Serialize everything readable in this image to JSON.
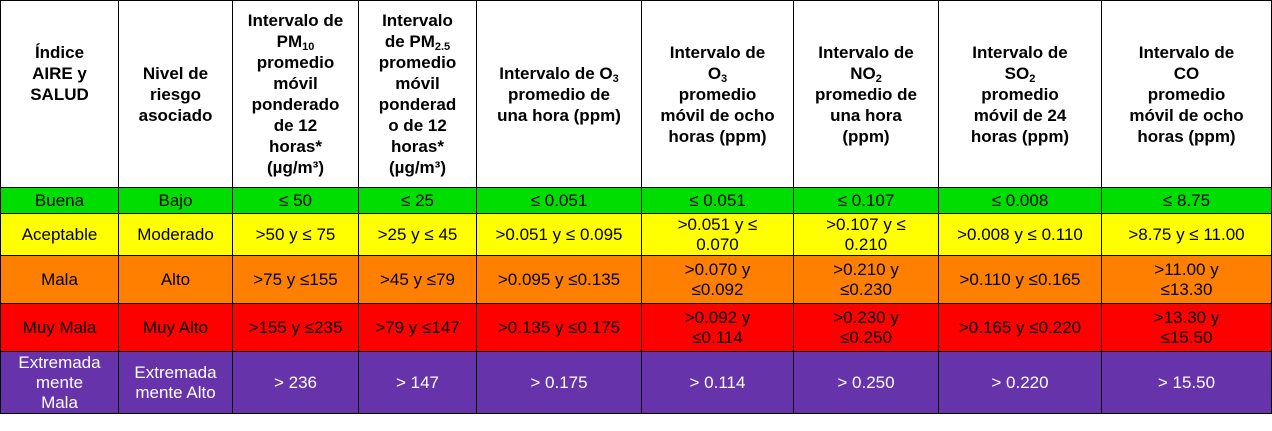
{
  "columns": [
    {
      "lines": [
        "Índice",
        "AIRE y",
        "SALUD"
      ]
    },
    {
      "lines": [
        "Nivel de",
        "riesgo",
        "asociado"
      ]
    },
    {
      "lines": [
        "Intervalo de",
        "PM|10",
        "promedio",
        "móvil",
        "ponderado",
        "de 12",
        "horas*",
        "(µg/m³)"
      ]
    },
    {
      "lines": [
        "Intervalo",
        "de PM|2.5",
        "promedio",
        "móvil",
        "ponderad",
        "o de 12",
        "horas*",
        "(µg/m³)"
      ]
    },
    {
      "lines": [
        "Intervalo de O|3",
        "promedio de",
        "una hora (ppm)"
      ]
    },
    {
      "lines": [
        "Intervalo de",
        "O|3",
        "promedio",
        "móvil de ocho",
        "horas (ppm)"
      ]
    },
    {
      "lines": [
        "Intervalo de",
        "NO|2",
        "promedio de",
        "una hora",
        "(ppm)"
      ]
    },
    {
      "lines": [
        "Intervalo de",
        "SO|2",
        "promedio",
        "móvil de 24",
        "horas (ppm)"
      ]
    },
    {
      "lines": [
        "Intervalo de",
        "CO",
        "promedio",
        "móvil de ocho",
        "horas (ppm)"
      ]
    }
  ],
  "rows": [
    {
      "key": "buena",
      "color": "#00dd00",
      "cells": [
        [
          "Buena"
        ],
        [
          "Bajo"
        ],
        [
          "≤ 50"
        ],
        [
          "≤ 25"
        ],
        [
          "≤ 0.051"
        ],
        [
          "≤ 0.051"
        ],
        [
          "≤ 0.107"
        ],
        [
          "≤ 0.008"
        ],
        [
          "≤ 8.75"
        ]
      ]
    },
    {
      "key": "aceptable",
      "color": "#ffff00",
      "cells": [
        [
          "Aceptable"
        ],
        [
          "Moderado"
        ],
        [
          ">50 y ≤ 75"
        ],
        [
          ">25 y ≤ 45"
        ],
        [
          ">0.051 y ≤ 0.095"
        ],
        [
          ">0.051 y ≤",
          "0.070"
        ],
        [
          ">0.107 y ≤",
          "0.210"
        ],
        [
          ">0.008 y ≤ 0.110"
        ],
        [
          ">8.75 y ≤ 11.00"
        ]
      ]
    },
    {
      "key": "mala",
      "color": "#ff8000",
      "cells": [
        [
          "Mala"
        ],
        [
          "Alto"
        ],
        [
          ">75 y ≤155"
        ],
        [
          ">45 y ≤79"
        ],
        [
          ">0.095 y ≤0.135"
        ],
        [
          ">0.070 y",
          "≤0.092"
        ],
        [
          ">0.210 y",
          "≤0.230"
        ],
        [
          ">0.110 y ≤0.165"
        ],
        [
          ">11.00 y",
          "≤13.30"
        ]
      ]
    },
    {
      "key": "muymala",
      "color": "#ff0000",
      "cells": [
        [
          "Muy Mala"
        ],
        [
          "Muy Alto"
        ],
        [
          ">155 y ≤235"
        ],
        [
          ">79 y ≤147"
        ],
        [
          ">0.135 y ≤0.175"
        ],
        [
          ">0.092 y",
          "≤0.114"
        ],
        [
          ">0.230 y",
          "≤0.250"
        ],
        [
          ">0.165 y ≤0.220"
        ],
        [
          ">13.30 y",
          "≤15.50"
        ]
      ]
    },
    {
      "key": "extrema",
      "color": "#6633aa",
      "cells": [
        [
          "Extremada",
          "mente",
          "Mala"
        ],
        [
          "Extremada",
          "mente Alto"
        ],
        [
          "> 236"
        ],
        [
          "> 147"
        ],
        [
          "> 0.175"
        ],
        [
          "> 0.114"
        ],
        [
          "> 0.250"
        ],
        [
          "> 0.220"
        ],
        [
          "> 15.50"
        ]
      ]
    }
  ]
}
